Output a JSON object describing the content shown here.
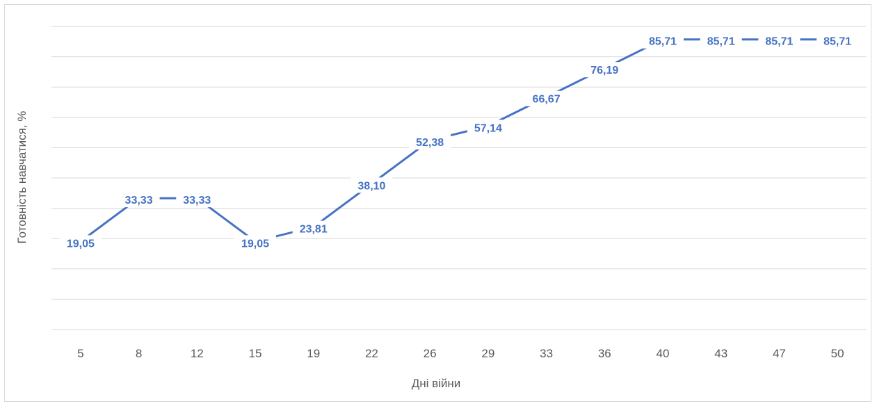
{
  "chart_data": {
    "type": "line",
    "title": "",
    "xlabel": "Дні війни",
    "ylabel": "Готовність навчатися, %",
    "categories": [
      "5",
      "8",
      "12",
      "15",
      "19",
      "22",
      "26",
      "29",
      "33",
      "36",
      "40",
      "43",
      "47",
      "50"
    ],
    "series": [
      {
        "values": [
          19.05,
          33.33,
          33.33,
          19.05,
          23.81,
          38.1,
          52.38,
          57.14,
          66.67,
          76.19,
          85.71,
          85.71,
          85.71,
          85.71
        ],
        "labels": [
          "19,05",
          "33,33",
          "33,33",
          "19,05",
          "23,81",
          "38,10",
          "52,38",
          "57,14",
          "66,67",
          "76,19",
          "85,71",
          "85,71",
          "85,71",
          "85,71"
        ],
        "color": "#4472c4"
      }
    ],
    "ylim": [
      -10,
      90
    ],
    "grid": true,
    "legend": "none",
    "colors": {
      "grid": "#d9d9d9",
      "text": "#595959",
      "series": "#4472c4"
    }
  }
}
